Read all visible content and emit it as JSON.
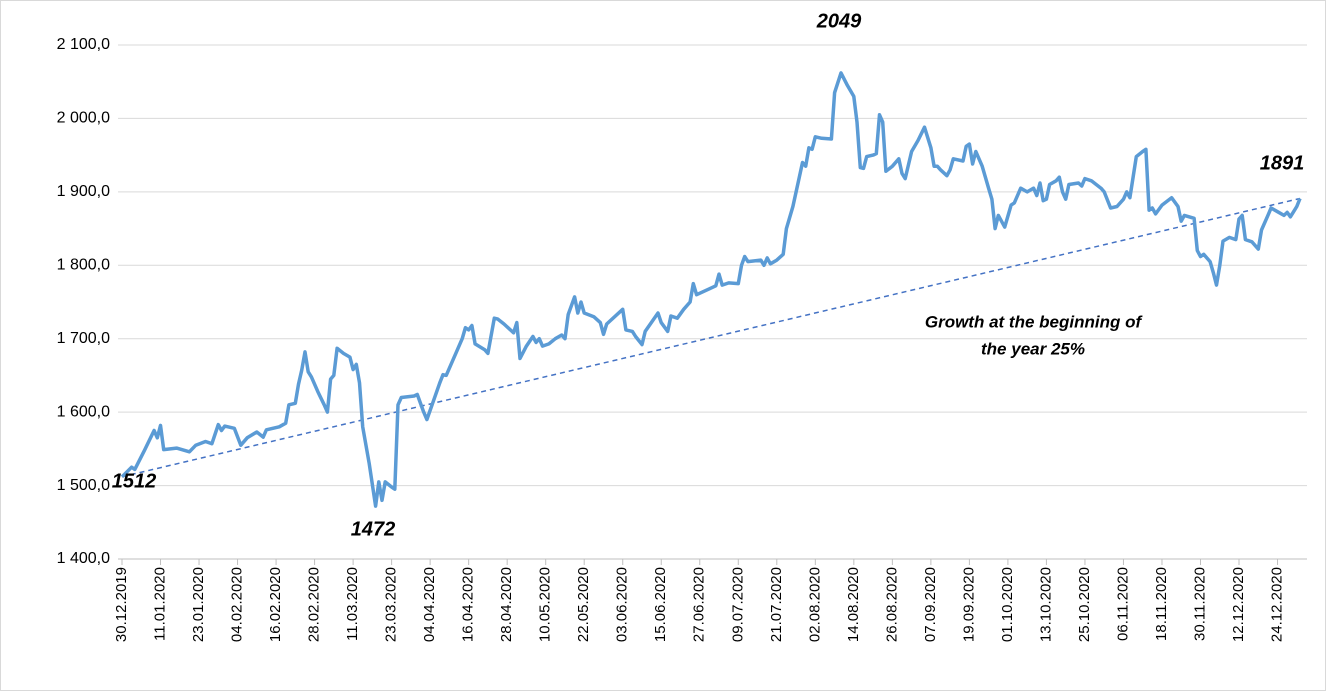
{
  "chart_data": {
    "type": "line",
    "x": [
      "30.12.2019",
      "02.01.2020",
      "03.01.2020",
      "06.01.2020",
      "09.01.2020",
      "10.01.2020",
      "11.01.2020",
      "12.01.2020",
      "16.01.2020",
      "20.01.2020",
      "22.01.2020",
      "25.01.2020",
      "27.01.2020",
      "29.01.2020",
      "30.01.2020",
      "31.01.2020",
      "03.02.2020",
      "05.02.2020",
      "07.02.2020",
      "10.02.2020",
      "12.02.2020",
      "13.02.2020",
      "17.02.2020",
      "19.02.2020",
      "20.02.2020",
      "22.02.2020",
      "23.02.2020",
      "24.02.2020",
      "25.02.2020",
      "26.02.2020",
      "27.02.2020",
      "29.02.2020",
      "02.03.2020",
      "03.03.2020",
      "04.03.2020",
      "05.03.2020",
      "06.03.2020",
      "08.03.2020",
      "10.03.2020",
      "11.03.2020",
      "12.03.2020",
      "13.03.2020",
      "14.03.2020",
      "16.03.2020",
      "18.03.2020",
      "19.03.2020",
      "20.03.2020",
      "21.03.2020",
      "23.03.2020",
      "24.03.2020",
      "25.03.2020",
      "26.03.2020",
      "30.03.2020",
      "31.03.2020",
      "02.04.2020",
      "03.04.2020",
      "05.04.2020",
      "07.04.2020",
      "08.04.2020",
      "09.04.2020",
      "12.04.2020",
      "14.04.2020",
      "15.04.2020",
      "16.04.2020",
      "17.04.2020",
      "18.04.2020",
      "21.04.2020",
      "22.04.2020",
      "24.04.2020",
      "25.04.2020",
      "27.04.2020",
      "29.04.2020",
      "30.04.2020",
      "01.05.2020",
      "02.05.2020",
      "04.05.2020",
      "06.05.2020",
      "07.05.2020",
      "08.05.2020",
      "09.05.2020",
      "11.05.2020",
      "13.05.2020",
      "15.05.2020",
      "16.05.2020",
      "17.05.2020",
      "18.05.2020",
      "19.05.2020",
      "20.05.2020",
      "21.05.2020",
      "22.05.2020",
      "25.05.2020",
      "27.05.2020",
      "28.05.2020",
      "29.05.2020",
      "03.06.2020",
      "04.06.2020",
      "06.06.2020",
      "07.06.2020",
      "09.06.2020",
      "10.06.2020",
      "14.06.2020",
      "15.06.2020",
      "17.06.2020",
      "18.06.2020",
      "20.06.2020",
      "22.06.2020",
      "24.06.2020",
      "25.06.2020",
      "26.06.2020",
      "30.06.2020",
      "02.07.2020",
      "03.07.2020",
      "04.07.2020",
      "06.07.2020",
      "09.07.2020",
      "10.07.2020",
      "11.07.2020",
      "12.07.2020",
      "16.07.2020",
      "17.07.2020",
      "18.07.2020",
      "19.07.2020",
      "21.07.2020",
      "23.07.2020",
      "24.07.2020",
      "26.07.2020",
      "28.07.2020",
      "29.07.2020",
      "30.07.2020",
      "31.07.2020",
      "01.08.2020",
      "02.08.2020",
      "04.08.2020",
      "07.08.2020",
      "08.08.2020",
      "10.08.2020",
      "12.08.2020",
      "14.08.2020",
      "15.08.2020",
      "16.08.2020",
      "17.08.2020",
      "18.08.2020",
      "20.08.2020",
      "21.08.2020",
      "22.08.2020",
      "23.08.2020",
      "24.08.2020",
      "26.08.2020",
      "28.08.2020",
      "29.08.2020",
      "30.08.2020",
      "01.09.2020",
      "03.09.2020",
      "05.09.2020",
      "07.09.2020",
      "08.09.2020",
      "09.09.2020",
      "10.09.2020",
      "12.09.2020",
      "13.09.2020",
      "14.09.2020",
      "17.09.2020",
      "18.09.2020",
      "19.09.2020",
      "20.09.2020",
      "21.09.2020",
      "23.09.2020",
      "25.09.2020",
      "26.09.2020",
      "27.09.2020",
      "28.09.2020",
      "29.09.2020",
      "30.09.2020",
      "02.10.2020",
      "03.10.2020",
      "05.10.2020",
      "07.10.2020",
      "09.10.2020",
      "10.10.2020",
      "11.10.2020",
      "12.10.2020",
      "13.10.2020",
      "14.10.2020",
      "16.10.2020",
      "17.10.2020",
      "18.10.2020",
      "19.10.2020",
      "20.10.2020",
      "23.10.2020",
      "24.10.2020",
      "25.10.2020",
      "27.10.2020",
      "30.10.2020",
      "31.10.2020",
      "02.11.2020",
      "04.11.2020",
      "06.11.2020",
      "07.11.2020",
      "08.11.2020",
      "09.11.2020",
      "10.11.2020",
      "12.11.2020",
      "13.11.2020",
      "14.11.2020",
      "15.11.2020",
      "16.11.2020",
      "18.11.2020",
      "21.11.2020",
      "23.11.2020",
      "24.11.2020",
      "25.11.2020",
      "28.11.2020",
      "29.11.2020",
      "30.11.2020",
      "01.12.2020",
      "03.12.2020",
      "04.12.2020",
      "05.12.2020",
      "06.12.2020",
      "07.12.2020",
      "09.12.2020",
      "11.12.2020",
      "12.12.2020",
      "13.12.2020",
      "14.12.2020",
      "16.12.2020",
      "18.12.2020",
      "19.12.2020",
      "21.12.2020",
      "22.12.2020",
      "24.12.2020",
      "26.12.2020",
      "27.12.2020",
      "28.12.2020",
      "29.12.2020",
      "30.12.2020",
      "31.12.2020"
    ],
    "series": [
      {
        "color": "#5b9bd5",
        "values": [
          1512,
          1525,
          1522,
          1548,
          1575,
          1565,
          1582,
          1549,
          1551,
          1546,
          1555,
          1560,
          1557,
          1583,
          1575,
          1581,
          1578,
          1555,
          1565,
          1573,
          1566,
          1576,
          1580,
          1585,
          1610,
          1612,
          1638,
          1657,
          1682,
          1655,
          1648,
          1628,
          1610,
          1600,
          1645,
          1650,
          1687,
          1680,
          1675,
          1658,
          1665,
          1640,
          1580,
          1530,
          1472,
          1505,
          1480,
          1505,
          1498,
          1495,
          1610,
          1620,
          1622,
          1624,
          1600,
          1590,
          1615,
          1640,
          1651,
          1650,
          1680,
          1700,
          1715,
          1712,
          1718,
          1693,
          1685,
          1680,
          1728,
          1727,
          1720,
          1712,
          1708,
          1722,
          1673,
          1690,
          1703,
          1695,
          1700,
          1690,
          1693,
          1700,
          1705,
          1700,
          1733,
          1745,
          1757,
          1735,
          1750,
          1735,
          1730,
          1722,
          1706,
          1720,
          1740,
          1712,
          1710,
          1703,
          1692,
          1710,
          1735,
          1722,
          1710,
          1731,
          1728,
          1740,
          1750,
          1775,
          1760,
          1768,
          1772,
          1788,
          1773,
          1776,
          1775,
          1800,
          1812,
          1805,
          1807,
          1800,
          1810,
          1802,
          1807,
          1815,
          1850,
          1880,
          1920,
          1940,
          1935,
          1960,
          1958,
          1975,
          1973,
          1972,
          2035,
          2062,
          2045,
          2030,
          1995,
          1933,
          1932,
          1948,
          1950,
          1952,
          2005,
          1995,
          1928,
          1935,
          1945,
          1925,
          1918,
          1955,
          1970,
          1988,
          1960,
          1935,
          1935,
          1930,
          1922,
          1930,
          1945,
          1942,
          1962,
          1965,
          1938,
          1955,
          1935,
          1905,
          1890,
          1850,
          1868,
          1860,
          1852,
          1882,
          1885,
          1905,
          1900,
          1905,
          1895,
          1912,
          1888,
          1890,
          1910,
          1915,
          1920,
          1900,
          1890,
          1910,
          1912,
          1908,
          1918,
          1915,
          1905,
          1900,
          1878,
          1880,
          1890,
          1900,
          1892,
          1920,
          1948,
          1955,
          1958,
          1875,
          1878,
          1870,
          1882,
          1892,
          1880,
          1860,
          1868,
          1864,
          1820,
          1812,
          1815,
          1805,
          1790,
          1773,
          1800,
          1833,
          1838,
          1835,
          1863,
          1868,
          1835,
          1832,
          1822,
          1848,
          1868,
          1878,
          1873,
          1868,
          1872,
          1866,
          1873,
          1880,
          1891
        ]
      }
    ],
    "trend_color": "#4472c4",
    "xlim": [
      "30.12.2019",
      "31.12.2020"
    ],
    "xticks": [
      "30.12.2019",
      "11.01.2020",
      "23.01.2020",
      "04.02.2020",
      "16.02.2020",
      "28.02.2020",
      "11.03.2020",
      "23.03.2020",
      "04.04.2020",
      "16.04.2020",
      "28.04.2020",
      "10.05.2020",
      "22.05.2020",
      "03.06.2020",
      "15.06.2020",
      "27.06.2020",
      "09.07.2020",
      "21.07.2020",
      "02.08.2020",
      "14.08.2020",
      "26.08.2020",
      "07.09.2020",
      "19.09.2020",
      "01.10.2020",
      "13.10.2020",
      "25.10.2020",
      "06.11.2020",
      "18.11.2020",
      "30.11.2020",
      "12.12.2020",
      "24.12.2020"
    ],
    "ylim": [
      1400,
      2100
    ],
    "yticks": [
      {
        "value": 1400,
        "label": "1 400,0"
      },
      {
        "value": 1500,
        "label": "1 500,0"
      },
      {
        "value": 1600,
        "label": "1 600,0"
      },
      {
        "value": 1700,
        "label": "1 700,0"
      },
      {
        "value": 1800,
        "label": "1 800,0"
      },
      {
        "value": 1900,
        "label": "1 900,0"
      },
      {
        "value": 2000,
        "label": "2 000,0"
      },
      {
        "value": 2100,
        "label": "2 100,0"
      }
    ],
    "grid": true,
    "annotations": [
      "1512",
      "1472",
      "2049",
      "1891",
      "Growth at the beginning of",
      "the year 25%"
    ]
  }
}
